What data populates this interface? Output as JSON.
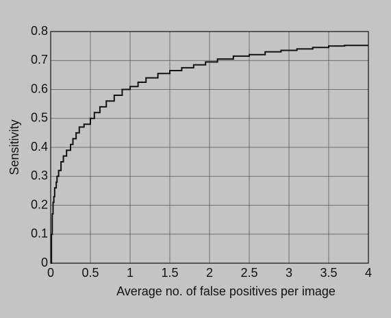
{
  "chart_data": {
    "type": "line",
    "drawstyle": "steps-post",
    "x_label": "Average no. of false positives per image",
    "y_label": "Sensitivity",
    "x": [
      0,
      0.01,
      0.02,
      0.03,
      0.04,
      0.05,
      0.07,
      0.08,
      0.1,
      0.13,
      0.16,
      0.2,
      0.25,
      0.28,
      0.32,
      0.36,
      0.42,
      0.5,
      0.55,
      0.62,
      0.7,
      0.8,
      0.9,
      1.0,
      1.1,
      1.2,
      1.35,
      1.5,
      1.65,
      1.8,
      1.95,
      2.1,
      2.3,
      2.5,
      2.7,
      2.9,
      3.1,
      3.3,
      3.5,
      3.7,
      4.0
    ],
    "values": [
      0,
      0.1,
      0.17,
      0.21,
      0.23,
      0.26,
      0.28,
      0.3,
      0.32,
      0.35,
      0.37,
      0.39,
      0.41,
      0.43,
      0.45,
      0.47,
      0.48,
      0.5,
      0.52,
      0.54,
      0.56,
      0.58,
      0.6,
      0.61,
      0.625,
      0.64,
      0.655,
      0.665,
      0.675,
      0.685,
      0.695,
      0.705,
      0.715,
      0.72,
      0.73,
      0.735,
      0.74,
      0.745,
      0.75,
      0.752,
      0.752
    ],
    "color": "#111111",
    "xlim": [
      0,
      4
    ],
    "xticks": [
      0,
      0.5,
      1,
      1.5,
      2,
      2.5,
      3,
      3.5,
      4
    ],
    "ylim": [
      0,
      0.8
    ],
    "yticks": [
      0,
      0.1,
      0.2,
      0.3,
      0.4,
      0.5,
      0.6,
      0.7,
      0.8
    ],
    "grid": true
  }
}
